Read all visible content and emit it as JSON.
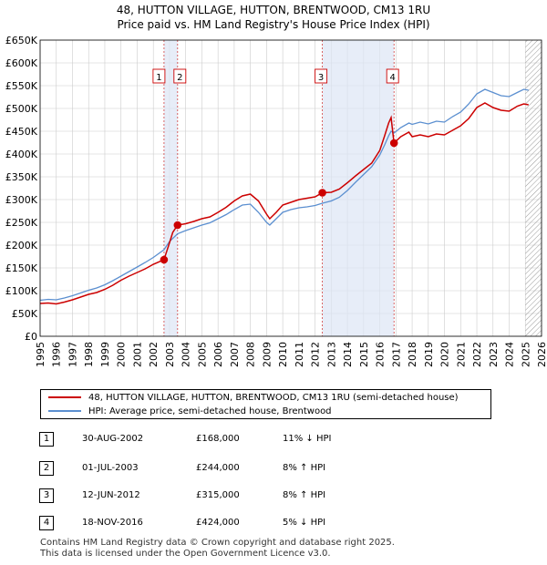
{
  "chart_data": {
    "type": "line",
    "title": "48, HUTTON VILLAGE, HUTTON, BRENTWOOD, CM13 1RU",
    "subtitle": "Price paid vs. HM Land Registry's House Price Index (HPI)",
    "ylim": [
      0,
      650000
    ],
    "xlim": [
      1995,
      2026
    ],
    "y_ticks": [
      0,
      50000,
      100000,
      150000,
      200000,
      250000,
      300000,
      350000,
      400000,
      450000,
      500000,
      550000,
      600000,
      650000
    ],
    "y_tick_labels": [
      "£0",
      "£50K",
      "£100K",
      "£150K",
      "£200K",
      "£250K",
      "£300K",
      "£350K",
      "£400K",
      "£450K",
      "£500K",
      "£550K",
      "£600K",
      "£650K"
    ],
    "x_ticks": [
      "1995",
      "1996",
      "1997",
      "1998",
      "1999",
      "2000",
      "2001",
      "2002",
      "2003",
      "2004",
      "2005",
      "2006",
      "2007",
      "2008",
      "2009",
      "2010",
      "2011",
      "2012",
      "2013",
      "2014",
      "2015",
      "2016",
      "2017",
      "2018",
      "2019",
      "2020",
      "2021",
      "2022",
      "2023",
      "2024",
      "2025",
      "2026"
    ],
    "forecast_start": 2025.0,
    "series": [
      {
        "name": "48, HUTTON VILLAGE, HUTTON, BRENTWOOD, CM13 1RU (semi-detached house)",
        "color": "#cc0000",
        "points": [
          [
            1995.0,
            72000
          ],
          [
            1995.5,
            73000
          ],
          [
            1996.0,
            71000
          ],
          [
            1996.5,
            75000
          ],
          [
            1997.0,
            80000
          ],
          [
            1997.5,
            86000
          ],
          [
            1998.0,
            92000
          ],
          [
            1998.5,
            96000
          ],
          [
            1999.0,
            103000
          ],
          [
            1999.5,
            112000
          ],
          [
            2000.0,
            123000
          ],
          [
            2000.5,
            132000
          ],
          [
            2001.0,
            140000
          ],
          [
            2001.5,
            148000
          ],
          [
            2002.0,
            158000
          ],
          [
            2002.66,
            168000
          ],
          [
            2003.0,
            205000
          ],
          [
            2003.2,
            228000
          ],
          [
            2003.5,
            244000
          ],
          [
            2004.0,
            247000
          ],
          [
            2004.5,
            252000
          ],
          [
            2005.0,
            258000
          ],
          [
            2005.5,
            262000
          ],
          [
            2006.0,
            272000
          ],
          [
            2006.5,
            283000
          ],
          [
            2007.0,
            297000
          ],
          [
            2007.5,
            308000
          ],
          [
            2008.0,
            312000
          ],
          [
            2008.5,
            297000
          ],
          [
            2009.0,
            268000
          ],
          [
            2009.2,
            258000
          ],
          [
            2009.6,
            272000
          ],
          [
            2010.0,
            288000
          ],
          [
            2010.5,
            294000
          ],
          [
            2011.0,
            300000
          ],
          [
            2011.5,
            303000
          ],
          [
            2012.0,
            306000
          ],
          [
            2012.45,
            315000
          ],
          [
            2013.0,
            316000
          ],
          [
            2013.5,
            323000
          ],
          [
            2014.0,
            337000
          ],
          [
            2014.5,
            352000
          ],
          [
            2015.0,
            366000
          ],
          [
            2015.5,
            380000
          ],
          [
            2016.0,
            408000
          ],
          [
            2016.3,
            440000
          ],
          [
            2016.55,
            468000
          ],
          [
            2016.7,
            480000
          ],
          [
            2016.88,
            424000
          ],
          [
            2017.3,
            438000
          ],
          [
            2017.8,
            448000
          ],
          [
            2018.0,
            438000
          ],
          [
            2018.5,
            442000
          ],
          [
            2019.0,
            438000
          ],
          [
            2019.5,
            444000
          ],
          [
            2020.0,
            442000
          ],
          [
            2020.5,
            452000
          ],
          [
            2021.0,
            462000
          ],
          [
            2021.5,
            478000
          ],
          [
            2022.0,
            502000
          ],
          [
            2022.5,
            512000
          ],
          [
            2023.0,
            502000
          ],
          [
            2023.5,
            496000
          ],
          [
            2024.0,
            494000
          ],
          [
            2024.5,
            505000
          ],
          [
            2024.9,
            510000
          ],
          [
            2025.2,
            508000
          ]
        ]
      },
      {
        "name": "HPI: Average price, semi-detached house, Brentwood",
        "color": "#5b8fd0",
        "points": [
          [
            1995.0,
            79000
          ],
          [
            1995.5,
            81000
          ],
          [
            1996.0,
            80000
          ],
          [
            1996.5,
            84000
          ],
          [
            1997.0,
            89000
          ],
          [
            1997.5,
            95000
          ],
          [
            1998.0,
            101000
          ],
          [
            1998.5,
            106000
          ],
          [
            1999.0,
            113000
          ],
          [
            1999.5,
            122000
          ],
          [
            2000.0,
            132000
          ],
          [
            2000.5,
            142000
          ],
          [
            2001.0,
            152000
          ],
          [
            2001.5,
            162000
          ],
          [
            2002.0,
            173000
          ],
          [
            2002.66,
            190000
          ],
          [
            2003.0,
            208000
          ],
          [
            2003.5,
            225000
          ],
          [
            2004.0,
            232000
          ],
          [
            2004.5,
            238000
          ],
          [
            2005.0,
            244000
          ],
          [
            2005.5,
            249000
          ],
          [
            2006.0,
            258000
          ],
          [
            2006.5,
            267000
          ],
          [
            2007.0,
            278000
          ],
          [
            2007.5,
            288000
          ],
          [
            2008.0,
            290000
          ],
          [
            2008.5,
            272000
          ],
          [
            2009.0,
            250000
          ],
          [
            2009.2,
            244000
          ],
          [
            2009.6,
            258000
          ],
          [
            2010.0,
            272000
          ],
          [
            2010.5,
            278000
          ],
          [
            2011.0,
            282000
          ],
          [
            2011.5,
            284000
          ],
          [
            2012.0,
            287000
          ],
          [
            2012.45,
            292000
          ],
          [
            2013.0,
            297000
          ],
          [
            2013.5,
            305000
          ],
          [
            2014.0,
            320000
          ],
          [
            2014.5,
            338000
          ],
          [
            2015.0,
            355000
          ],
          [
            2015.5,
            372000
          ],
          [
            2016.0,
            398000
          ],
          [
            2016.3,
            420000
          ],
          [
            2016.55,
            440000
          ],
          [
            2016.7,
            450000
          ],
          [
            2016.88,
            446000
          ],
          [
            2017.3,
            458000
          ],
          [
            2017.8,
            468000
          ],
          [
            2018.0,
            465000
          ],
          [
            2018.5,
            470000
          ],
          [
            2019.0,
            466000
          ],
          [
            2019.5,
            472000
          ],
          [
            2020.0,
            470000
          ],
          [
            2020.5,
            482000
          ],
          [
            2021.0,
            492000
          ],
          [
            2021.5,
            510000
          ],
          [
            2022.0,
            532000
          ],
          [
            2022.5,
            542000
          ],
          [
            2023.0,
            535000
          ],
          [
            2023.5,
            528000
          ],
          [
            2024.0,
            526000
          ],
          [
            2024.5,
            535000
          ],
          [
            2024.9,
            542000
          ],
          [
            2025.2,
            540000
          ]
        ]
      }
    ],
    "markers": [
      {
        "label": "1",
        "x": 2002.66,
        "y": 168000
      },
      {
        "label": "2",
        "x": 2003.5,
        "y": 244000
      },
      {
        "label": "3",
        "x": 2012.45,
        "y": 315000
      },
      {
        "label": "4",
        "x": 2016.88,
        "y": 424000
      }
    ]
  },
  "title": "48, HUTTON VILLAGE, HUTTON, BRENTWOOD, CM13 1RU",
  "subtitle": "Price paid vs. HM Land Registry's House Price Index (HPI)",
  "legend": {
    "property": "48, HUTTON VILLAGE, HUTTON, BRENTWOOD, CM13 1RU (semi-detached house)",
    "hpi": "HPI: Average price, semi-detached house, Brentwood",
    "property_color": "#cc0000",
    "hpi_color": "#5b8fd0"
  },
  "transactions": [
    {
      "num": "1",
      "date": "30-AUG-2002",
      "price": "£168,000",
      "hpi": "11% ↓ HPI"
    },
    {
      "num": "2",
      "date": "01-JUL-2003",
      "price": "£244,000",
      "hpi": "8% ↑ HPI"
    },
    {
      "num": "3",
      "date": "12-JUN-2012",
      "price": "£315,000",
      "hpi": "8% ↑ HPI"
    },
    {
      "num": "4",
      "date": "18-NOV-2016",
      "price": "£424,000",
      "hpi": "5% ↓ HPI"
    }
  ],
  "footer": {
    "line1": "Contains HM Land Registry data © Crown copyright and database right 2025.",
    "line2": "This data is licensed under the Open Government Licence v3.0."
  }
}
